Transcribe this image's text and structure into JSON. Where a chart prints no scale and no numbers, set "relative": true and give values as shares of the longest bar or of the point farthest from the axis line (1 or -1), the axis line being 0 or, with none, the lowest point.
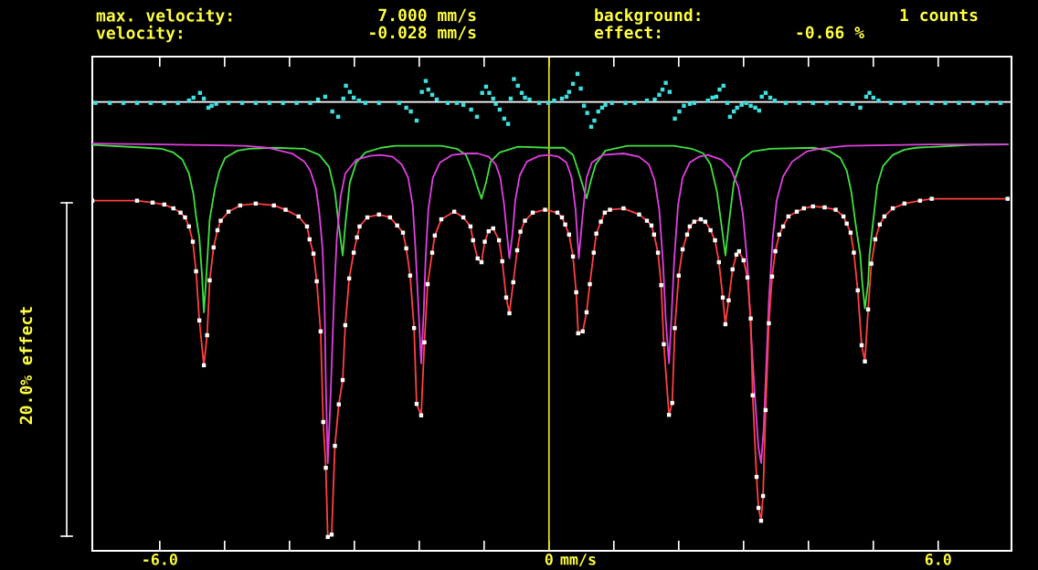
{
  "chart_data": {
    "type": "line",
    "relative": true,
    "xlabel": "mm/s",
    "xlim": [
      -7.04,
      7.13
    ],
    "xticks": [
      {
        "value": -6,
        "label": "-6.0"
      },
      {
        "value": -5,
        "label": null
      },
      {
        "value": -4,
        "label": null
      },
      {
        "value": -3,
        "label": null
      },
      {
        "value": -2,
        "label": null
      },
      {
        "value": -1,
        "label": null
      },
      0,
      {
        "value": 1,
        "label": null
      },
      {
        "value": 2,
        "label": null
      },
      {
        "value": 3,
        "label": null
      },
      {
        "value": 4,
        "label": null
      },
      {
        "value": 5,
        "label": null
      },
      {
        "value": 6,
        "label": "6.0"
      }
    ],
    "tick_labels": "x",
    "grid": false,
    "legend": false,
    "annotations": [
      "max. velocity:",
      "7.000 mm/s",
      "background:",
      "1 counts",
      "velocity:",
      "-0.028 mm/s",
      "effect:",
      "-0.66 %",
      "20.0% effect"
    ],
    "ref_lines": [
      {
        "axis": "x",
        "value": 0,
        "color": "#e8e020"
      },
      {
        "axis": "y",
        "value": 0.941,
        "color": "#ffffff"
      }
    ],
    "series": [
      {
        "type": "scatter",
        "marker": "square",
        "color": "#40e0e0",
        "x": [
          -5.55,
          -5.48,
          -5.38,
          -5.32,
          -5.25,
          -5.2,
          -5.13,
          -3.56,
          -3.45,
          -3.34,
          -3.25,
          -3.17,
          -3.13,
          -3.07,
          -3.01,
          -2.93,
          -2.31,
          -2.2,
          -2.13,
          -2.04,
          -1.96,
          -1.9,
          -1.86,
          -1.8,
          -1.73,
          -1.32,
          -1.2,
          -1.11,
          -1.03,
          -0.97,
          -0.92,
          -0.86,
          -0.82,
          -0.76,
          -0.69,
          -0.63,
          -0.59,
          -0.54,
          -0.48,
          -0.42,
          -0.37,
          -0.3,
          0.08,
          0.2,
          0.27,
          0.31,
          0.37,
          0.44,
          0.49,
          0.54,
          0.59,
          0.65,
          0.7,
          0.76,
          0.82,
          0.87,
          1.51,
          1.63,
          1.7,
          1.75,
          1.8,
          1.86,
          1.94,
          2.01,
          2.08,
          2.17,
          2.45,
          2.52,
          2.58,
          2.63,
          2.69,
          2.75,
          2.79,
          2.85,
          2.9,
          2.97,
          3.04,
          3.11,
          3.18,
          3.24,
          3.28,
          3.34,
          3.41,
          3.48,
          4.68,
          4.8,
          4.89,
          4.94,
          5.0,
          5.08,
          -6.99,
          -6.77,
          -6.56,
          -6.35,
          -6.14,
          -5.93,
          -5.72,
          -4.94,
          -4.73,
          -4.52,
          -4.31,
          -4.1,
          -3.89,
          -3.68,
          -2.83,
          -2.62,
          -1.56,
          -1.42,
          -0.15,
          -0.01,
          0.97,
          1.18,
          1.32,
          2.24,
          3.65,
          3.86,
          4.07,
          4.28,
          4.49,
          5.27,
          5.48,
          5.69,
          5.9,
          6.11,
          6.32,
          6.54,
          6.75,
          6.96
        ],
        "values": [
          0.944,
          0.95,
          0.96,
          0.948,
          0.929,
          0.933,
          0.937,
          0.946,
          0.952,
          0.921,
          0.91,
          0.948,
          0.975,
          0.962,
          0.95,
          0.944,
          0.939,
          0.929,
          0.921,
          0.902,
          0.962,
          0.985,
          0.967,
          0.956,
          0.946,
          0.935,
          0.925,
          0.91,
          0.96,
          0.973,
          0.96,
          0.948,
          0.937,
          0.925,
          0.906,
          0.895,
          0.948,
          0.989,
          0.975,
          0.96,
          0.95,
          0.946,
          0.944,
          0.948,
          0.952,
          0.962,
          0.979,
          1.0,
          0.969,
          0.933,
          0.918,
          0.889,
          0.902,
          0.921,
          0.929,
          0.935,
          0.944,
          0.946,
          0.956,
          0.967,
          0.981,
          0.962,
          0.906,
          0.921,
          0.933,
          0.937,
          0.944,
          0.95,
          0.952,
          0.967,
          0.975,
          0.939,
          0.91,
          0.921,
          0.929,
          0.935,
          0.939,
          0.933,
          0.929,
          0.923,
          0.952,
          0.96,
          0.95,
          0.944,
          0.937,
          0.929,
          0.952,
          0.96,
          0.95,
          0.944,
          0.939,
          0.939,
          0.939,
          0.939,
          0.939,
          0.939,
          0.939,
          0.939,
          0.939,
          0.939,
          0.939,
          0.939,
          0.939,
          0.939,
          0.939,
          0.939,
          0.939,
          0.939,
          0.939,
          0.939,
          0.939,
          0.939,
          0.939,
          0.939,
          0.939,
          0.939,
          0.939,
          0.939,
          0.939,
          0.939,
          0.939,
          0.939,
          0.939,
          0.939,
          0.939,
          0.939,
          0.939,
          0.939
        ]
      },
      {
        "color": "#40e040",
        "x": [
          -7.04,
          -6.21,
          -5.97,
          -5.79,
          -5.65,
          -5.55,
          -5.48,
          -5.44,
          -5.39,
          -5.35,
          -5.32,
          -5.28,
          -5.23,
          -5.15,
          -5.08,
          -4.99,
          -4.8,
          -4.62,
          -4.24,
          -3.77,
          -3.54,
          -3.39,
          -3.3,
          -3.24,
          -3.18,
          -3.14,
          -3.07,
          -2.97,
          -2.83,
          -2.59,
          -2.37,
          -1.66,
          -1.42,
          -1.28,
          -1.18,
          -1.11,
          -1.04,
          -0.97,
          -0.9,
          -0.76,
          -0.48,
          0.0,
          0.23,
          0.37,
          0.45,
          0.52,
          0.58,
          0.65,
          0.72,
          0.87,
          1.21,
          1.92,
          2.2,
          2.38,
          2.49,
          2.59,
          2.66,
          2.72,
          2.77,
          2.85,
          2.97,
          3.13,
          3.41,
          4.07,
          4.31,
          4.49,
          4.59,
          4.66,
          4.73,
          4.8,
          4.83,
          4.87,
          4.92,
          4.94,
          4.99,
          5.06,
          5.15,
          5.3,
          5.48,
          5.66,
          6.51,
          7.07
        ],
        "values": [
          0.851,
          0.845,
          0.843,
          0.835,
          0.82,
          0.791,
          0.747,
          0.701,
          0.657,
          0.58,
          0.5,
          0.58,
          0.695,
          0.759,
          0.797,
          0.824,
          0.839,
          0.843,
          0.845,
          0.843,
          0.83,
          0.805,
          0.753,
          0.682,
          0.619,
          0.682,
          0.772,
          0.814,
          0.835,
          0.845,
          0.849,
          0.849,
          0.843,
          0.83,
          0.797,
          0.766,
          0.738,
          0.772,
          0.816,
          0.835,
          0.847,
          0.845,
          0.845,
          0.83,
          0.797,
          0.766,
          0.739,
          0.778,
          0.81,
          0.839,
          0.849,
          0.849,
          0.843,
          0.833,
          0.81,
          0.753,
          0.682,
          0.619,
          0.682,
          0.772,
          0.82,
          0.837,
          0.843,
          0.845,
          0.839,
          0.824,
          0.797,
          0.753,
          0.682,
          0.619,
          0.561,
          0.508,
          0.561,
          0.619,
          0.682,
          0.766,
          0.807,
          0.83,
          0.841,
          0.845,
          0.851,
          0.852
        ]
      },
      {
        "color": "#e040e0",
        "x": [
          -7.04,
          -5.97,
          -4.7,
          -4.34,
          -3.96,
          -3.77,
          -3.68,
          -3.59,
          -3.54,
          -3.49,
          -3.46,
          -3.44,
          -3.41,
          -3.37,
          -3.34,
          -3.31,
          -3.27,
          -3.21,
          -3.14,
          -2.97,
          -2.76,
          -2.59,
          -2.41,
          -2.27,
          -2.17,
          -2.1,
          -2.06,
          -2.01,
          -1.97,
          -1.93,
          -1.9,
          -1.86,
          -1.79,
          -1.68,
          -1.49,
          -1.28,
          -1.1,
          -0.93,
          -0.82,
          -0.75,
          -0.69,
          -0.65,
          -0.61,
          -0.56,
          -0.52,
          -0.45,
          -0.34,
          -0.15,
          0.0,
          0.15,
          0.27,
          0.35,
          0.41,
          0.46,
          0.52,
          0.58,
          0.66,
          0.83,
          1.15,
          1.39,
          1.54,
          1.63,
          1.7,
          1.76,
          1.8,
          1.85,
          1.89,
          1.93,
          1.99,
          2.06,
          2.17,
          2.31,
          2.45,
          2.66,
          2.8,
          2.92,
          2.99,
          3.06,
          3.11,
          3.17,
          3.23,
          3.27,
          3.31,
          3.35,
          3.39,
          3.45,
          3.51,
          3.61,
          3.75,
          3.97,
          4.17,
          4.59,
          5.86,
          7.07
        ],
        "values": [
          0.854,
          0.852,
          0.849,
          0.845,
          0.833,
          0.816,
          0.797,
          0.759,
          0.709,
          0.632,
          0.523,
          0.351,
          0.184,
          0.312,
          0.427,
          0.542,
          0.657,
          0.743,
          0.791,
          0.82,
          0.828,
          0.83,
          0.826,
          0.81,
          0.782,
          0.724,
          0.638,
          0.504,
          0.393,
          0.504,
          0.619,
          0.715,
          0.782,
          0.814,
          0.83,
          0.833,
          0.833,
          0.826,
          0.81,
          0.782,
          0.724,
          0.667,
          0.613,
          0.667,
          0.734,
          0.787,
          0.816,
          0.828,
          0.83,
          0.826,
          0.814,
          0.782,
          0.715,
          0.613,
          0.705,
          0.782,
          0.814,
          0.83,
          0.833,
          0.826,
          0.81,
          0.776,
          0.715,
          0.6,
          0.485,
          0.393,
          0.494,
          0.609,
          0.724,
          0.782,
          0.814,
          0.826,
          0.83,
          0.82,
          0.801,
          0.762,
          0.705,
          0.6,
          0.466,
          0.331,
          0.216,
          0.184,
          0.255,
          0.389,
          0.523,
          0.657,
          0.734,
          0.785,
          0.816,
          0.837,
          0.843,
          0.849,
          0.852,
          0.852
        ]
      },
      {
        "color": "#ff4040",
        "x": [
          -7.04,
          -6.35,
          -6.11,
          -5.93,
          -5.79,
          -5.68,
          -5.61,
          -5.55,
          -5.49,
          -5.44,
          -5.39,
          -5.32,
          -5.27,
          -5.23,
          -5.17,
          -5.11,
          -5.06,
          -4.94,
          -4.76,
          -4.52,
          -4.24,
          -4.06,
          -3.86,
          -3.73,
          -3.69,
          -3.63,
          -3.58,
          -3.52,
          -3.48,
          -3.44,
          -3.41,
          -3.35,
          -3.3,
          -3.24,
          -3.18,
          -3.14,
          -3.08,
          -3.01,
          -2.96,
          -2.92,
          -2.8,
          -2.62,
          -2.45,
          -2.34,
          -2.25,
          -2.2,
          -2.14,
          -2.08,
          -2.04,
          -1.97,
          -1.92,
          -1.87,
          -1.8,
          -1.76,
          -1.66,
          -1.46,
          -1.32,
          -1.21,
          -1.17,
          -1.1,
          -1.04,
          -0.99,
          -0.93,
          -0.86,
          -0.77,
          -0.72,
          -0.66,
          -0.61,
          -0.55,
          -0.49,
          -0.44,
          -0.37,
          -0.25,
          -0.06,
          0.13,
          0.2,
          0.25,
          0.31,
          0.37,
          0.42,
          0.45,
          0.52,
          0.58,
          0.63,
          0.69,
          0.73,
          0.8,
          0.86,
          0.94,
          1.15,
          1.39,
          1.51,
          1.58,
          1.62,
          1.68,
          1.73,
          1.77,
          1.85,
          1.9,
          1.94,
          2.0,
          2.06,
          2.13,
          2.17,
          2.24,
          2.34,
          2.41,
          2.49,
          2.56,
          2.62,
          2.68,
          2.72,
          2.77,
          2.83,
          2.89,
          2.93,
          3.0,
          3.06,
          3.11,
          3.14,
          3.2,
          3.23,
          3.27,
          3.3,
          3.34,
          3.39,
          3.44,
          3.49,
          3.55,
          3.61,
          3.69,
          3.82,
          3.93,
          4.07,
          4.25,
          4.42,
          4.54,
          4.59,
          4.65,
          4.7,
          4.76,
          4.82,
          4.87,
          4.92,
          4.97,
          5.03,
          5.1,
          5.17,
          5.3,
          5.48,
          5.72,
          5.9,
          7.07
        ],
        "values": [
          0.734,
          0.734,
          0.73,
          0.726,
          0.718,
          0.709,
          0.699,
          0.68,
          0.648,
          0.586,
          0.483,
          0.389,
          0.452,
          0.567,
          0.636,
          0.672,
          0.692,
          0.711,
          0.724,
          0.728,
          0.724,
          0.715,
          0.701,
          0.68,
          0.653,
          0.623,
          0.565,
          0.46,
          0.27,
          0.174,
          0.029,
          0.034,
          0.22,
          0.307,
          0.358,
          0.473,
          0.571,
          0.625,
          0.657,
          0.68,
          0.699,
          0.705,
          0.699,
          0.682,
          0.667,
          0.634,
          0.577,
          0.467,
          0.308,
          0.284,
          0.437,
          0.559,
          0.625,
          0.661,
          0.695,
          0.711,
          0.699,
          0.68,
          0.651,
          0.613,
          0.605,
          0.648,
          0.67,
          0.676,
          0.651,
          0.607,
          0.531,
          0.498,
          0.563,
          0.63,
          0.669,
          0.692,
          0.709,
          0.715,
          0.709,
          0.699,
          0.684,
          0.663,
          0.617,
          0.542,
          0.456,
          0.46,
          0.5,
          0.559,
          0.625,
          0.665,
          0.69,
          0.709,
          0.715,
          0.718,
          0.705,
          0.692,
          0.682,
          0.663,
          0.625,
          0.557,
          0.433,
          0.285,
          0.31,
          0.467,
          0.577,
          0.632,
          0.663,
          0.68,
          0.69,
          0.695,
          0.69,
          0.672,
          0.651,
          0.605,
          0.531,
          0.475,
          0.525,
          0.59,
          0.621,
          0.628,
          0.609,
          0.573,
          0.487,
          0.326,
          0.155,
          0.09,
          0.063,
          0.115,
          0.295,
          0.477,
          0.575,
          0.628,
          0.663,
          0.68,
          0.701,
          0.711,
          0.718,
          0.722,
          0.72,
          0.715,
          0.701,
          0.686,
          0.667,
          0.625,
          0.546,
          0.431,
          0.397,
          0.506,
          0.602,
          0.653,
          0.684,
          0.701,
          0.718,
          0.728,
          0.734,
          0.738,
          0.738
        ]
      },
      {
        "type": "scatter",
        "marker": "square",
        "color": "#ffffff",
        "x": [
          -7.04,
          -6.35,
          -6.11,
          -5.93,
          -5.79,
          -5.68,
          -5.61,
          -5.55,
          -5.49,
          -5.44,
          -5.39,
          -5.32,
          -5.27,
          -5.23,
          -5.17,
          -5.11,
          -5.06,
          -4.94,
          -4.76,
          -4.52,
          -4.24,
          -4.06,
          -3.86,
          -3.73,
          -3.69,
          -3.63,
          -3.58,
          -3.52,
          -3.48,
          -3.44,
          -3.41,
          -3.35,
          -3.3,
          -3.24,
          -3.18,
          -3.14,
          -3.08,
          -3.01,
          -2.96,
          -2.92,
          -2.8,
          -2.62,
          -2.45,
          -2.34,
          -2.25,
          -2.2,
          -2.14,
          -2.08,
          -2.04,
          -1.97,
          -1.92,
          -1.87,
          -1.8,
          -1.76,
          -1.66,
          -1.46,
          -1.32,
          -1.21,
          -1.17,
          -1.1,
          -1.04,
          -0.99,
          -0.93,
          -0.86,
          -0.77,
          -0.72,
          -0.66,
          -0.61,
          -0.55,
          -0.49,
          -0.44,
          -0.37,
          -0.25,
          -0.06,
          0.13,
          0.2,
          0.25,
          0.31,
          0.37,
          0.42,
          0.45,
          0.52,
          0.58,
          0.63,
          0.69,
          0.73,
          0.8,
          0.86,
          0.94,
          1.15,
          1.39,
          1.51,
          1.58,
          1.62,
          1.68,
          1.73,
          1.77,
          1.85,
          1.9,
          1.94,
          2.0,
          2.06,
          2.13,
          2.17,
          2.24,
          2.34,
          2.41,
          2.49,
          2.56,
          2.62,
          2.68,
          2.72,
          2.77,
          2.83,
          2.89,
          2.93,
          3.0,
          3.06,
          3.11,
          3.14,
          3.2,
          3.23,
          3.27,
          3.3,
          3.34,
          3.39,
          3.44,
          3.49,
          3.55,
          3.61,
          3.69,
          3.82,
          3.93,
          4.07,
          4.25,
          4.42,
          4.54,
          4.59,
          4.65,
          4.7,
          4.76,
          4.82,
          4.87,
          4.92,
          4.97,
          5.03,
          5.1,
          5.17,
          5.3,
          5.48,
          5.72,
          5.9,
          7.07
        ],
        "values": [
          0.734,
          0.734,
          0.73,
          0.726,
          0.718,
          0.709,
          0.699,
          0.68,
          0.648,
          0.586,
          0.483,
          0.389,
          0.452,
          0.567,
          0.636,
          0.672,
          0.692,
          0.711,
          0.724,
          0.728,
          0.724,
          0.715,
          0.701,
          0.68,
          0.653,
          0.623,
          0.565,
          0.46,
          0.27,
          0.174,
          0.029,
          0.034,
          0.22,
          0.307,
          0.358,
          0.473,
          0.571,
          0.625,
          0.657,
          0.68,
          0.699,
          0.705,
          0.699,
          0.682,
          0.667,
          0.634,
          0.577,
          0.467,
          0.308,
          0.284,
          0.437,
          0.559,
          0.625,
          0.661,
          0.695,
          0.711,
          0.699,
          0.68,
          0.651,
          0.613,
          0.605,
          0.648,
          0.67,
          0.676,
          0.651,
          0.607,
          0.531,
          0.498,
          0.563,
          0.63,
          0.669,
          0.692,
          0.709,
          0.715,
          0.709,
          0.699,
          0.684,
          0.663,
          0.617,
          0.542,
          0.456,
          0.46,
          0.5,
          0.559,
          0.625,
          0.665,
          0.69,
          0.709,
          0.715,
          0.718,
          0.705,
          0.692,
          0.682,
          0.663,
          0.625,
          0.557,
          0.433,
          0.285,
          0.31,
          0.467,
          0.577,
          0.632,
          0.663,
          0.68,
          0.69,
          0.695,
          0.69,
          0.672,
          0.651,
          0.605,
          0.531,
          0.475,
          0.525,
          0.59,
          0.621,
          0.628,
          0.609,
          0.573,
          0.487,
          0.326,
          0.155,
          0.09,
          0.063,
          0.115,
          0.295,
          0.477,
          0.575,
          0.628,
          0.663,
          0.68,
          0.701,
          0.711,
          0.718,
          0.722,
          0.72,
          0.715,
          0.701,
          0.686,
          0.667,
          0.625,
          0.546,
          0.431,
          0.397,
          0.506,
          0.602,
          0.653,
          0.684,
          0.701,
          0.718,
          0.728,
          0.734,
          0.738,
          0.738
        ]
      }
    ]
  }
}
